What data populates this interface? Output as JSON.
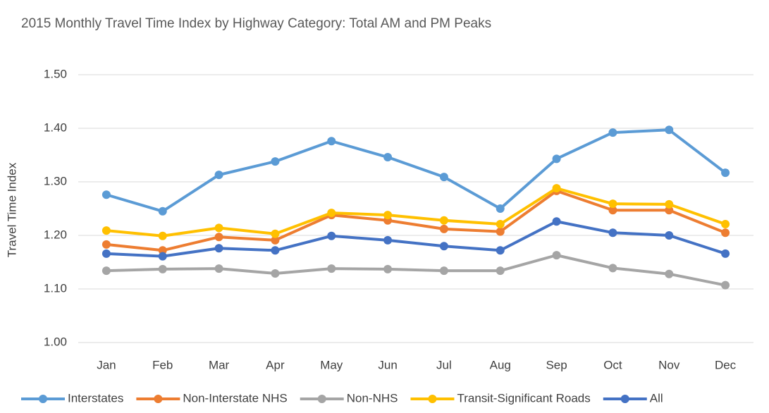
{
  "chart_data": {
    "type": "line",
    "title": "2015 Monthly Travel Time Index by Highway Category: Total AM and PM Peaks",
    "y_label": "Travel Time Index",
    "categories": [
      "Jan",
      "Feb",
      "Mar",
      "Apr",
      "May",
      "Jun",
      "Jul",
      "Aug",
      "Sep",
      "Oct",
      "Nov",
      "Dec"
    ],
    "series": [
      {
        "name": "Interstates",
        "color": "#5b9bd5",
        "values": [
          1.276,
          1.245,
          1.313,
          1.338,
          1.376,
          1.346,
          1.309,
          1.25,
          1.343,
          1.392,
          1.397,
          1.317
        ]
      },
      {
        "name": "Non-Interstate NHS",
        "color": "#ed7d31",
        "values": [
          1.183,
          1.172,
          1.197,
          1.191,
          1.238,
          1.228,
          1.212,
          1.207,
          1.283,
          1.247,
          1.247,
          1.205
        ]
      },
      {
        "name": "Non-NHS",
        "color": "#a5a5a5",
        "values": [
          1.134,
          1.137,
          1.138,
          1.129,
          1.138,
          1.137,
          1.134,
          1.134,
          1.163,
          1.139,
          1.128,
          1.107
        ]
      },
      {
        "name": "Transit-Significant Roads",
        "color": "#ffc000",
        "values": [
          1.209,
          1.199,
          1.214,
          1.203,
          1.242,
          1.238,
          1.228,
          1.221,
          1.288,
          1.259,
          1.258,
          1.221
        ]
      },
      {
        "name": "All",
        "color": "#4472c4",
        "values": [
          1.166,
          1.161,
          1.176,
          1.172,
          1.199,
          1.191,
          1.18,
          1.172,
          1.226,
          1.205,
          1.2,
          1.166
        ]
      }
    ],
    "ylim": [
      1.0,
      1.5
    ],
    "yticks": [
      {
        "value": 1.0,
        "label": "1.00"
      },
      {
        "value": 1.1,
        "label": "1.10"
      },
      {
        "value": 1.2,
        "label": "1.20"
      },
      {
        "value": 1.3,
        "label": "1.30"
      },
      {
        "value": 1.4,
        "label": "1.40"
      },
      {
        "value": 1.5,
        "label": "1.50"
      }
    ],
    "grid": true,
    "legend": "bottom"
  }
}
